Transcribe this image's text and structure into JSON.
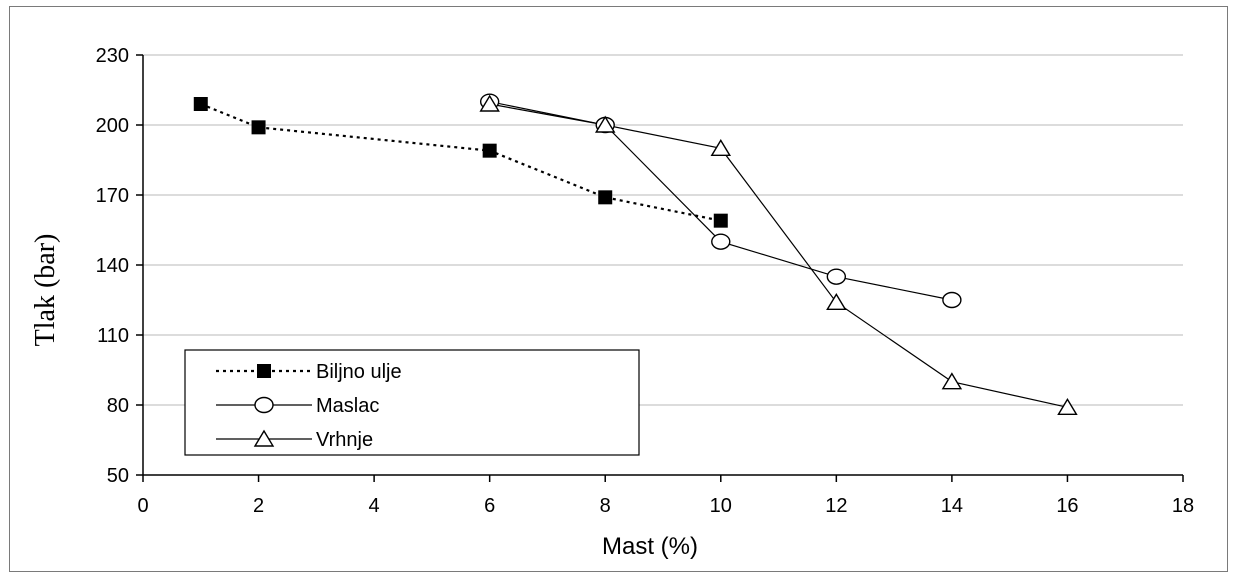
{
  "chart_data": {
    "type": "line",
    "title": "",
    "xlabel": "Mast (%)",
    "ylabel": "Tlak (bar)",
    "xlim": [
      0,
      18
    ],
    "ylim": [
      50,
      230
    ],
    "xticks": [
      0,
      2,
      4,
      6,
      8,
      10,
      12,
      14,
      16,
      18
    ],
    "yticks": [
      50,
      80,
      110,
      140,
      170,
      200,
      230
    ],
    "grid": "horizontal",
    "legend_position": "bottom-left",
    "series": [
      {
        "name": "Biljno ulje",
        "marker": "filled-square",
        "line_style": "dotted",
        "color": "#000000",
        "x": [
          1,
          2,
          6,
          8,
          10
        ],
        "y": [
          209,
          199,
          189,
          169,
          159
        ]
      },
      {
        "name": "Maslac",
        "marker": "open-circle",
        "line_style": "solid",
        "color": "#000000",
        "x": [
          6,
          8,
          10,
          12,
          14
        ],
        "y": [
          210,
          200,
          150,
          135,
          125
        ]
      },
      {
        "name": "Vrhnje",
        "marker": "open-triangle",
        "line_style": "solid",
        "color": "#000000",
        "x": [
          6,
          8,
          10,
          12,
          14,
          16
        ],
        "y": [
          209,
          200,
          190,
          124,
          90,
          79
        ]
      }
    ]
  }
}
